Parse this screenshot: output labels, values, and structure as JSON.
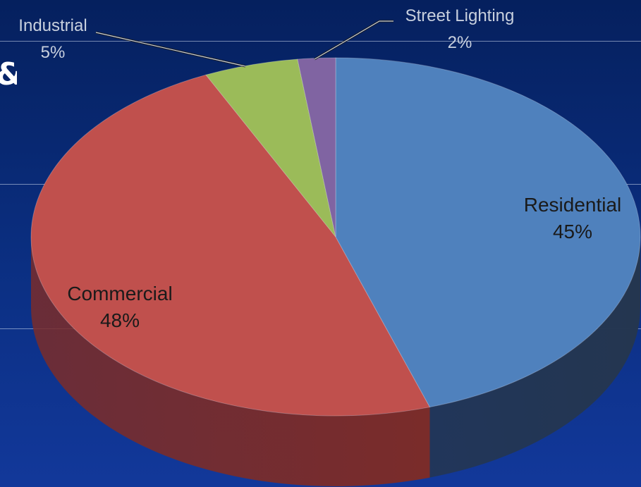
{
  "chart_data": {
    "type": "pie",
    "title": "",
    "slices": [
      {
        "label": "Residential",
        "value": 45,
        "value_label": "45%",
        "color": "#4f81bd",
        "side_color": "#243650"
      },
      {
        "label": "Commercial",
        "value": 48,
        "value_label": "48%",
        "color": "#c0504d",
        "side_color": "#7a2c2a"
      },
      {
        "label": "Industrial",
        "value": 5,
        "value_label": "5%",
        "color": "#9bbb59",
        "side_color": "#5d7435"
      },
      {
        "label": "Street Lighting",
        "value": 2,
        "value_label": "2%",
        "color": "#8064a2",
        "side_color": "#4b3a60"
      }
    ],
    "label_colors": {
      "inside": "#1a1a1a",
      "outside": "#c8d0de"
    },
    "style": "3d-pie",
    "legend": "none"
  },
  "decor": {
    "stray_glyph": "&"
  }
}
